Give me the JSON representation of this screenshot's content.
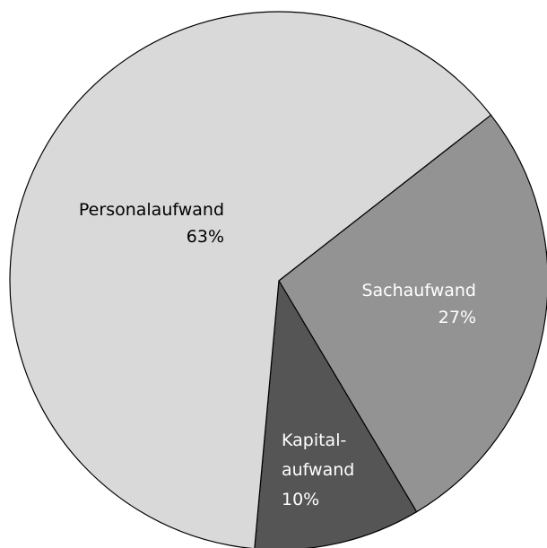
{
  "chart_data": {
    "type": "pie",
    "categories": [
      "Sachaufwand",
      "Kapital-aufwand",
      "Personalaufwand"
    ],
    "values": [
      27,
      10,
      63
    ],
    "value_labels": [
      "27%",
      "10%",
      "63%"
    ],
    "colors": [
      "#939393",
      "#555555",
      "#d9d9d9"
    ]
  }
}
